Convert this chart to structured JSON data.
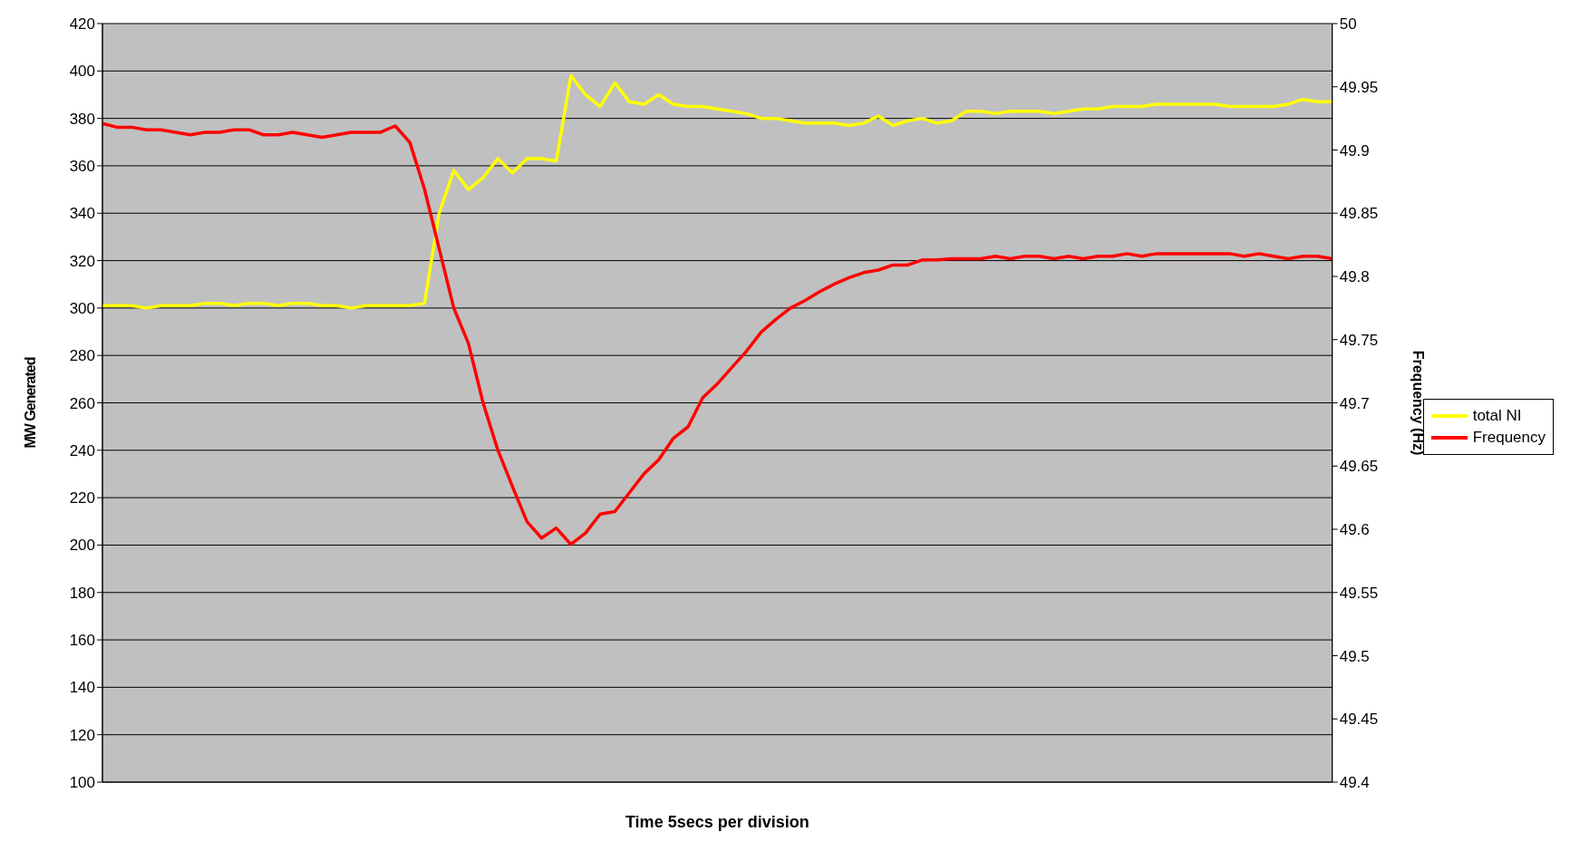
{
  "chart_data": {
    "type": "line",
    "xlabel": "Time  5secs per division",
    "ylabel": "MW Generated",
    "y2label": "Frequency (Hz)",
    "categories": [
      null,
      null,
      null,
      null,
      null,
      null,
      null,
      null,
      null,
      null,
      null,
      null,
      null,
      null,
      null,
      null,
      null,
      null,
      null,
      null,
      null,
      null,
      null,
      null,
      null,
      null,
      null,
      null,
      null,
      null,
      null,
      null,
      null,
      null,
      null,
      null,
      null,
      null,
      null,
      null,
      null,
      null,
      null,
      null,
      null,
      null,
      null,
      null,
      null,
      null,
      null,
      null,
      null,
      null,
      null,
      null,
      null,
      null,
      null,
      null,
      null,
      null,
      null,
      null,
      null,
      null,
      null,
      null,
      null,
      null,
      null,
      null,
      null,
      null,
      null,
      null,
      null,
      null,
      null,
      null,
      null,
      null,
      null,
      null,
      null
    ],
    "series": [
      {
        "name": "total NI",
        "color": "#ffff00",
        "values": [
          301,
          301,
          301,
          300,
          301,
          301,
          301,
          302,
          302,
          301,
          302,
          302,
          301,
          302,
          302,
          301,
          301,
          300,
          301,
          301,
          301,
          301,
          302,
          340,
          358,
          350,
          355,
          363,
          357,
          363,
          363,
          362,
          398,
          390,
          385,
          395,
          387,
          386,
          390,
          386,
          385,
          385,
          384,
          383,
          382,
          380,
          380,
          379,
          378,
          378,
          378,
          377,
          378,
          381,
          377,
          379,
          380,
          378,
          379,
          383,
          383,
          382,
          383,
          383,
          383,
          382,
          383,
          384,
          384,
          385,
          385,
          385,
          386,
          386,
          386,
          386,
          386,
          385,
          385,
          385,
          385,
          386,
          388,
          387,
          387
        ]
      },
      {
        "name": "Frequency",
        "color": "#ff0000",
        "axis": "y2",
        "values": [
          49.921,
          49.918,
          49.918,
          49.916,
          49.916,
          49.914,
          49.912,
          49.914,
          49.914,
          49.916,
          49.916,
          49.912,
          49.912,
          49.914,
          49.912,
          49.91,
          49.912,
          49.914,
          49.914,
          49.914,
          49.919,
          49.906,
          49.869,
          49.822,
          49.775,
          49.747,
          49.7,
          49.663,
          49.634,
          49.606,
          49.593,
          49.601,
          49.588,
          49.597,
          49.612,
          49.614,
          49.629,
          49.644,
          49.655,
          49.672,
          49.681,
          49.704,
          49.715,
          49.728,
          49.741,
          49.756,
          49.766,
          49.775,
          49.781,
          49.788,
          49.794,
          49.799,
          49.803,
          49.805,
          49.809,
          49.809,
          49.813,
          49.813,
          49.814,
          49.814,
          49.814,
          49.816,
          49.814,
          49.816,
          49.816,
          49.814,
          49.816,
          49.814,
          49.816,
          49.816,
          49.818,
          49.816,
          49.818,
          49.818,
          49.818,
          49.818,
          49.818,
          49.818,
          49.816,
          49.818,
          49.816,
          49.814,
          49.816,
          49.816,
          49.814
        ]
      }
    ],
    "ylim": [
      100,
      420
    ],
    "yticks": [
      100,
      120,
      140,
      160,
      180,
      200,
      220,
      240,
      260,
      280,
      300,
      320,
      340,
      360,
      380,
      400,
      420
    ],
    "y2lim": [
      49.4,
      50
    ],
    "y2ticks": [
      49.4,
      49.45,
      49.5,
      49.55,
      49.6,
      49.65,
      49.7,
      49.75,
      49.8,
      49.85,
      49.9,
      49.95,
      50
    ],
    "grid": true,
    "legend": "right",
    "tick_labels": "y",
    "marker": "none",
    "line_style": "solid"
  }
}
